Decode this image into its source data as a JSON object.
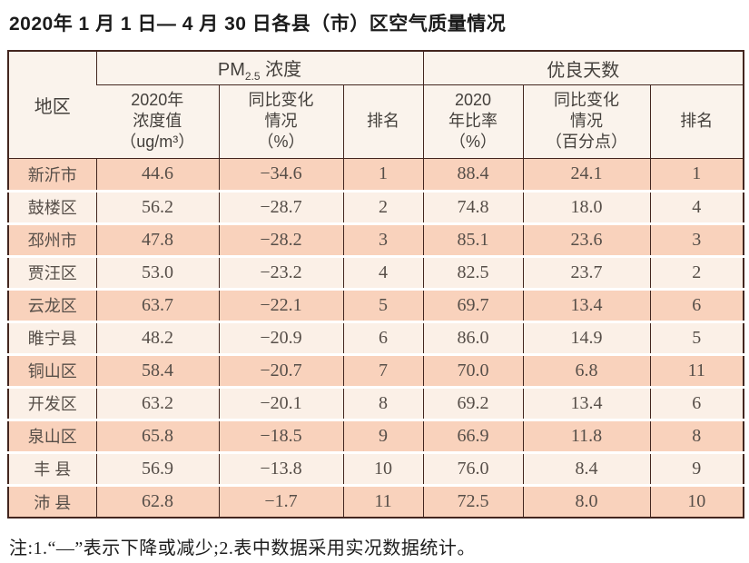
{
  "title": "2020年 1 月 1 日— 4 月 30 日各县（市）区空气质量情况",
  "note": "注:1.“—”表示下降或减少;2.表中数据采用实况数据统计。",
  "colors": {
    "row_peach": "#f9d2bc",
    "row_cream": "#fbf0e7",
    "header_bg": "#faf3ec",
    "border": "#43261f"
  },
  "table": {
    "headers": {
      "region": "地区",
      "pm25_group": {
        "prefix": "PM",
        "sub": "2.5",
        "suffix": " 浓度"
      },
      "good_days_group": "优良天数",
      "pm25_value": "2020年\n浓度值\n（ug/m³）",
      "pm25_change": "同比变化\n情况\n（%）",
      "pm25_rank": "排名",
      "good_rate": "2020\n年比率\n（%）",
      "good_change": "同比变化\n情况\n（百分点）",
      "good_rank": "排名"
    },
    "rows": [
      {
        "region": "新沂市",
        "pm25": "44.6",
        "pm25_change": "−34.6",
        "pm25_rank": "1",
        "rate": "88.4",
        "rate_change": "24.1",
        "rate_rank": "1"
      },
      {
        "region": "鼓楼区",
        "pm25": "56.2",
        "pm25_change": "−28.7",
        "pm25_rank": "2",
        "rate": "74.8",
        "rate_change": "18.0",
        "rate_rank": "4"
      },
      {
        "region": "邳州市",
        "pm25": "47.8",
        "pm25_change": "−28.2",
        "pm25_rank": "3",
        "rate": "85.1",
        "rate_change": "23.6",
        "rate_rank": "3"
      },
      {
        "region": "贾汪区",
        "pm25": "53.0",
        "pm25_change": "−23.2",
        "pm25_rank": "4",
        "rate": "82.5",
        "rate_change": "23.7",
        "rate_rank": "2"
      },
      {
        "region": "云龙区",
        "pm25": "63.7",
        "pm25_change": "−22.1",
        "pm25_rank": "5",
        "rate": "69.7",
        "rate_change": "13.4",
        "rate_rank": "6"
      },
      {
        "region": "睢宁县",
        "pm25": "48.2",
        "pm25_change": "−20.9",
        "pm25_rank": "6",
        "rate": "86.0",
        "rate_change": "14.9",
        "rate_rank": "5"
      },
      {
        "region": "铜山区",
        "pm25": "58.4",
        "pm25_change": "−20.7",
        "pm25_rank": "7",
        "rate": "70.0",
        "rate_change": "6.8",
        "rate_rank": "11"
      },
      {
        "region": "开发区",
        "pm25": "63.2",
        "pm25_change": "−20.1",
        "pm25_rank": "8",
        "rate": "69.2",
        "rate_change": "13.4",
        "rate_rank": "6"
      },
      {
        "region": "泉山区",
        "pm25": "65.8",
        "pm25_change": "−18.5",
        "pm25_rank": "9",
        "rate": "66.9",
        "rate_change": "11.8",
        "rate_rank": "8"
      },
      {
        "region": "丰 县",
        "pm25": "56.9",
        "pm25_change": "−13.8",
        "pm25_rank": "10",
        "rate": "76.0",
        "rate_change": "8.4",
        "rate_rank": "9"
      },
      {
        "region": "沛 县",
        "pm25": "62.8",
        "pm25_change": "−1.7",
        "pm25_rank": "11",
        "rate": "72.5",
        "rate_change": "8.0",
        "rate_rank": "10"
      }
    ]
  }
}
